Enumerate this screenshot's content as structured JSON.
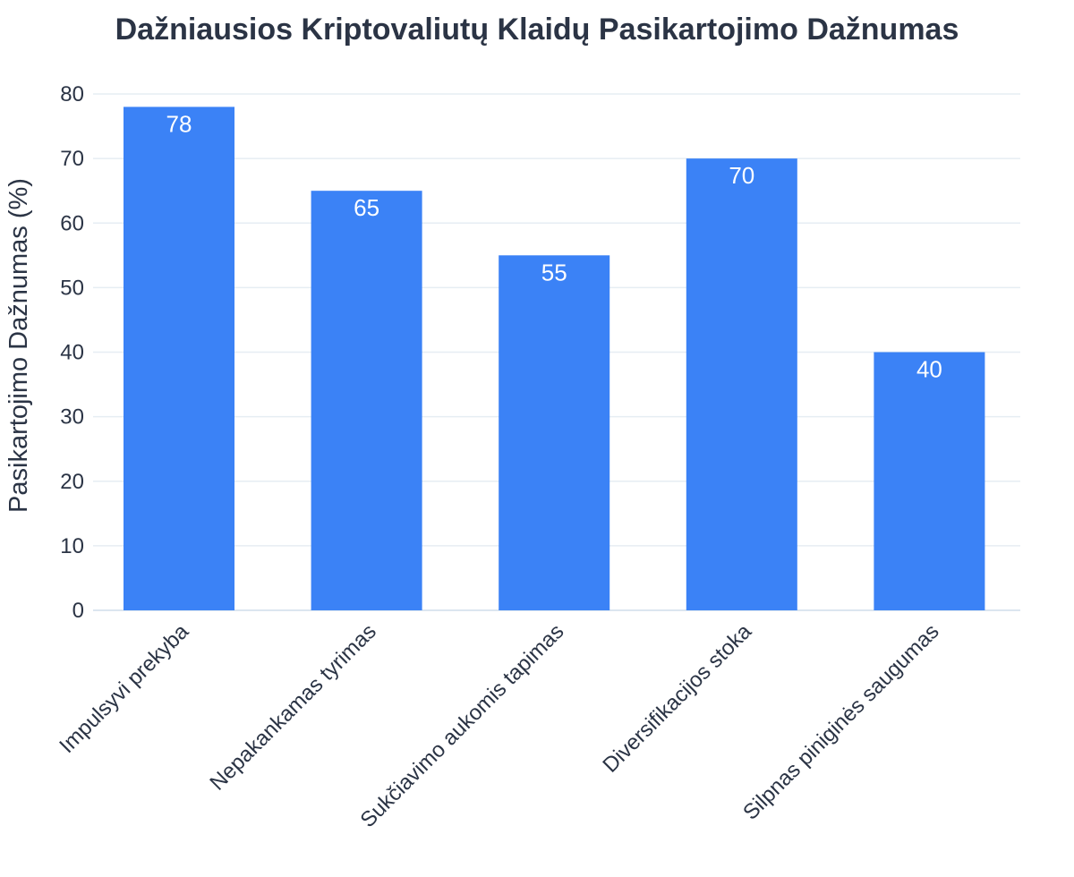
{
  "chart_data": {
    "type": "bar",
    "title": "Dažniausios Kriptovaliutų Klaidų Pasikartojimo Dažnumas",
    "xlabel": "",
    "ylabel": "Pasikartojimo Dažnumas (%)",
    "categories": [
      "Impulsyvi prekyba",
      "Nepakankamas tyrimas",
      "Sukčiavimo aukomis tapimas",
      "Diversifikacijos stoka",
      "Silpnas piniginės saugumas"
    ],
    "values": [
      78,
      65,
      55,
      70,
      40
    ],
    "ylim": [
      0,
      80
    ],
    "yticks": [
      0,
      10,
      20,
      30,
      40,
      50,
      60,
      70,
      80
    ],
    "grid": true,
    "legend": "none",
    "bar_color": "#3b82f6",
    "data_label_color": "#ffffff"
  }
}
